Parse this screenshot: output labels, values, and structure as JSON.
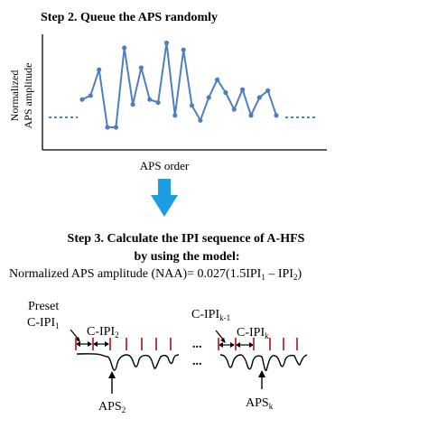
{
  "step2": {
    "title": "Step 2. Queue the APS randomly",
    "ylabel_line1": "Normalized",
    "ylabel_line2": "APS amplitude",
    "xlabel": "APS order"
  },
  "chart_data": {
    "type": "line",
    "title": "Step 2. Queue the APS randomly",
    "xlabel": "APS order",
    "ylabel": "Normalized APS amplitude",
    "y": [
      0.38,
      0.42,
      0.68,
      0.1,
      0.1,
      0.9,
      0.33,
      0.7,
      0.38,
      0.35,
      0.95,
      0.22,
      0.88,
      0.32,
      0.17,
      0.4,
      0.58,
      0.45,
      0.28,
      0.48,
      0.22,
      0.4,
      0.47,
      0.22
    ],
    "ylim": [
      0,
      1
    ],
    "color": "#4f7fbf",
    "baseline_level": 0.42
  },
  "arrow_color": "#1d9ee2",
  "step3": {
    "line1": "Step 3. Calculate the IPI sequence of A-HFS",
    "line2": "by using the model:",
    "formula_lhs": "Normalized APS amplitude (NAA)= 0.027(1.5IPI",
    "formula_sub1": "1",
    "formula_mid": " – IPI",
    "formula_sub2": "2",
    "formula_end": ")"
  },
  "bottom": {
    "preset_label": "Preset",
    "c_ipi1_main": "C-IPI",
    "c_ipi1_sub": "1",
    "c_ipi2_main": "C-IPI",
    "c_ipi2_sub": "2",
    "c_ipik1_main": "C-IPI",
    "c_ipik1_sub": "k-1",
    "c_ipik_main": "C-IPI",
    "c_ipik_sub": "k",
    "aps2_main": "APS",
    "aps2_sub": "2",
    "apsk_main": "APS",
    "apsk_sub": "k",
    "ellipsis_top": "...",
    "ellipsis_bottom": "...",
    "tick_color": "#c0272d"
  }
}
